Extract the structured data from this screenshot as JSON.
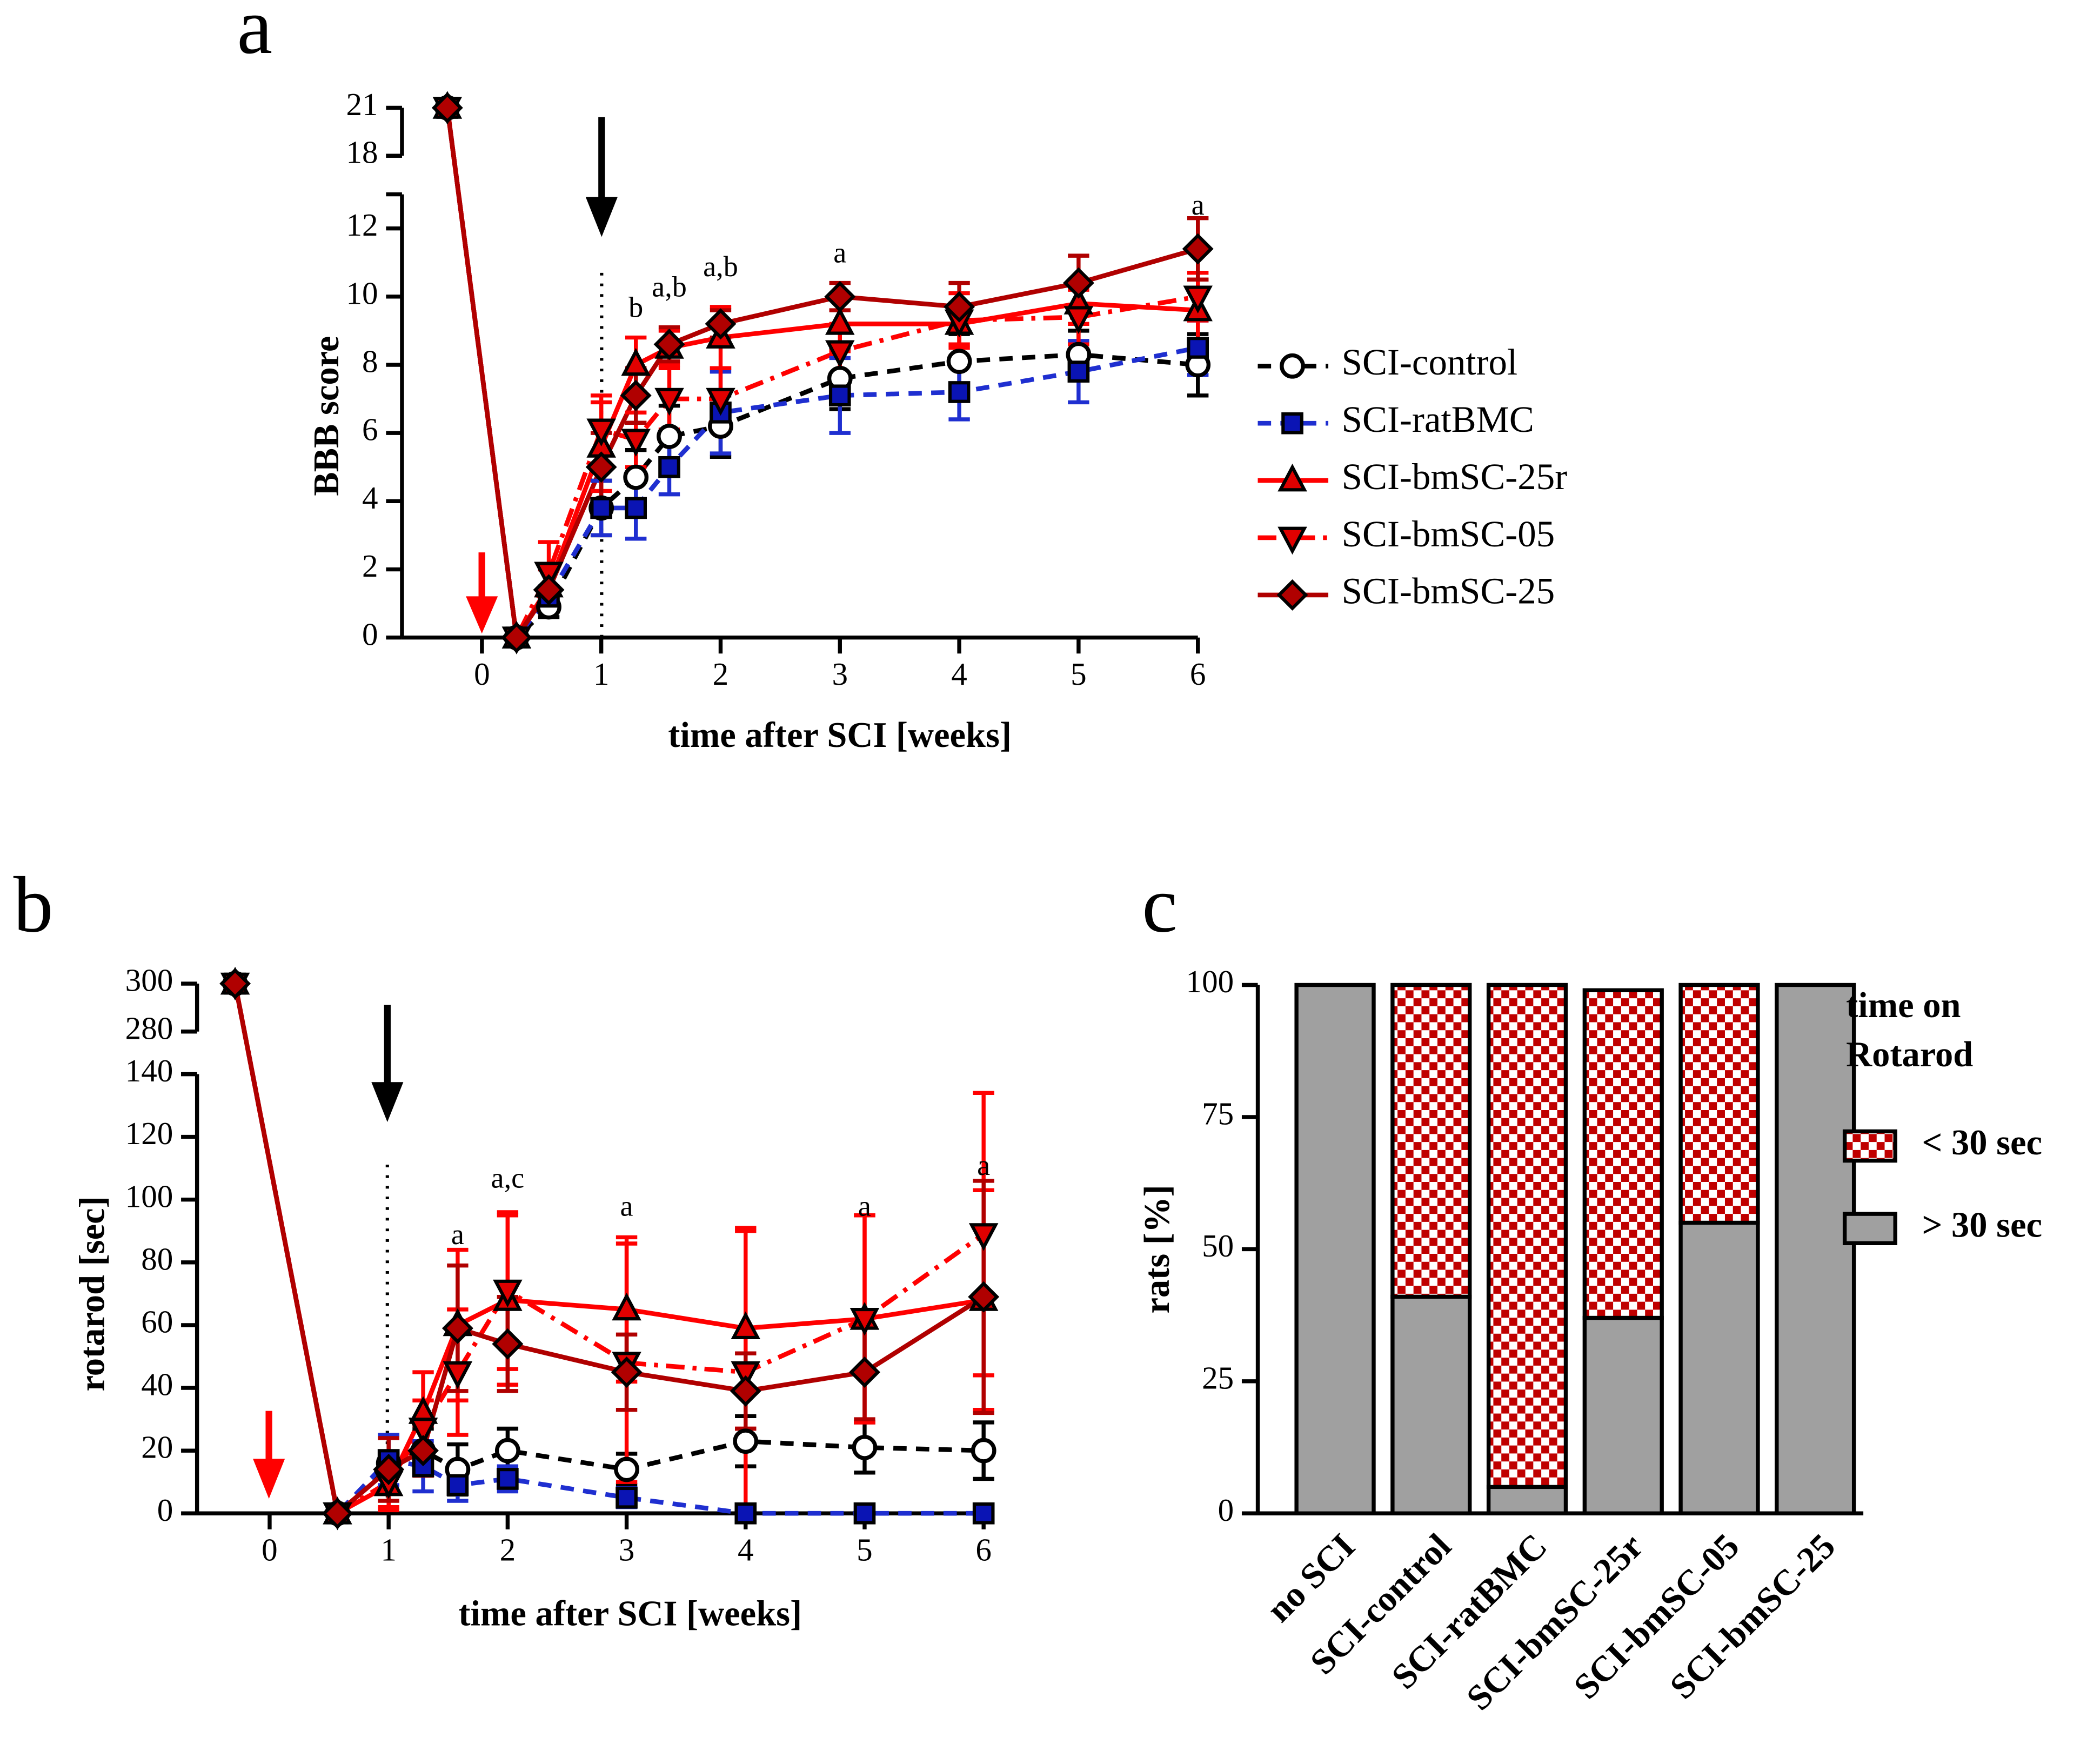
{
  "chart_data": [
    {
      "type": "line",
      "panel_label": "a",
      "ylabel": "BBB score",
      "xlabel": "time after SCI [weeks]",
      "x": [
        -0.29,
        0.29,
        0.56,
        1,
        1.29,
        1.57,
        2,
        3,
        4,
        5,
        6
      ],
      "xlim": [
        -0.67,
        6
      ],
      "xticks": [
        0,
        1,
        2,
        3,
        4,
        5,
        6
      ],
      "ylim": [
        0,
        13
      ],
      "yticks": [
        0,
        2,
        4,
        6,
        8,
        10,
        12
      ],
      "y2lim": [
        18,
        21
      ],
      "y2ticks": [
        18,
        21
      ],
      "series": [
        {
          "name": "SCI-control",
          "color": "#000000",
          "marker_color": "#ffffff",
          "marker": "circle",
          "dash": "dashed",
          "values": [
            21,
            0,
            0.9,
            3.8,
            4.7,
            5.9,
            6.2,
            7.6,
            8.1,
            8.3,
            8.0
          ],
          "errors": [
            null,
            null,
            0.3,
            0.8,
            0.8,
            0.9,
            0.9,
            0.9,
            0.8,
            0.7,
            0.9
          ]
        },
        {
          "name": "SCI-ratBMC",
          "color": "#1f2fd0",
          "marker_color": "#0a14b4",
          "marker": "square",
          "dash": "dashed",
          "values": [
            21,
            0,
            1.2,
            3.8,
            3.8,
            5.0,
            6.6,
            7.1,
            7.2,
            7.8,
            8.5
          ],
          "errors": [
            null,
            null,
            0.3,
            0.8,
            0.9,
            0.8,
            1.2,
            1.1,
            0.8,
            0.9,
            0.8
          ]
        },
        {
          "name": "SCI-bmSC-25r",
          "color": "#ff0000",
          "marker_color": "#e00000",
          "marker": "triangle-up",
          "dash": "solid",
          "values": [
            21,
            0,
            1.5,
            5.6,
            8.0,
            8.5,
            8.8,
            9.2,
            9.2,
            9.8,
            9.6
          ],
          "errors": [
            null,
            null,
            0.6,
            1.3,
            0.8,
            0.5,
            0.9,
            0.8,
            0.6,
            0.6,
            0.9
          ]
        },
        {
          "name": "SCI-bmSC-05",
          "color": "#ff0000",
          "marker_color": "#e00000",
          "marker": "triangle-down",
          "dash": "dashdot",
          "values": [
            21,
            0,
            1.9,
            6.1,
            5.8,
            7.0,
            7.0,
            8.4,
            9.3,
            9.4,
            10.0
          ],
          "errors": [
            null,
            null,
            0.9,
            1.0,
            0.8,
            0.9,
            0.9,
            0.8,
            0.8,
            0.8,
            0.7
          ]
        },
        {
          "name": "SCI-bmSC-25",
          "color": "#b00000",
          "marker_color": "#b00000",
          "marker": "diamond",
          "dash": "solid",
          "values": [
            21,
            0,
            1.4,
            5.0,
            7.1,
            8.6,
            9.2,
            10.0,
            9.7,
            10.4,
            11.4
          ],
          "errors": [
            null,
            null,
            0.6,
            1.0,
            0.8,
            0.5,
            0.4,
            0.4,
            0.7,
            0.8,
            0.9
          ]
        }
      ],
      "annotations": [
        {
          "text": "b",
          "x": 1.29,
          "y": 9.6
        },
        {
          "text": "a,b",
          "x": 1.57,
          "y": 10.2
        },
        {
          "text": "a,b",
          "x": 2,
          "y": 10.8
        },
        {
          "text": "a",
          "x": 3,
          "y": 11.2
        },
        {
          "text": "a",
          "x": 6,
          "y": 12.6
        }
      ]
    },
    {
      "type": "line",
      "panel_label": "b",
      "ylabel": "rotarod [sec]",
      "xlabel": "time after SCI [weeks]",
      "x": [
        -0.29,
        0.57,
        1,
        1.29,
        1.58,
        2,
        3,
        4,
        5,
        6
      ],
      "xlim": [
        -0.61,
        6
      ],
      "xticks": [
        0,
        1,
        2,
        3,
        4,
        5,
        6
      ],
      "ylim": [
        0,
        140
      ],
      "yticks": [
        0,
        20,
        40,
        60,
        80,
        100,
        120,
        140
      ],
      "y2lim": [
        280,
        300
      ],
      "y2ticks": [
        280,
        300
      ],
      "series": [
        {
          "color": "#000000",
          "marker_color": "#ffffff",
          "marker": "circle",
          "dash": "dashed",
          "values": [
            300,
            0,
            16,
            20,
            14,
            20,
            14,
            23,
            21,
            20
          ],
          "errors": [
            null,
            null,
            9,
            7,
            8,
            7,
            5,
            8,
            8,
            9
          ]
        },
        {
          "color": "#1f2fd0",
          "marker_color": "#0a14b4",
          "marker": "square",
          "dash": "dashed",
          "values": [
            300,
            0,
            17,
            15,
            9,
            11,
            5,
            0,
            0,
            0
          ],
          "errors": [
            null,
            null,
            8,
            8,
            5,
            4,
            3,
            null,
            null,
            null
          ]
        },
        {
          "color": "#ff0000",
          "marker_color": "#e00000",
          "marker": "triangle-up",
          "dash": "solid",
          "values": [
            300,
            0,
            9,
            32,
            60,
            68,
            65,
            59,
            62,
            68
          ],
          "errors": [
            null,
            null,
            8,
            13,
            24,
            27,
            23,
            32,
            33,
            35
          ]
        },
        {
          "color": "#ff0000",
          "marker_color": "#e00000",
          "marker": "triangle-down",
          "dash": "dashdot",
          "values": [
            300,
            0,
            10,
            27,
            45,
            71,
            48,
            45,
            62,
            89
          ],
          "errors": [
            null,
            null,
            8,
            9,
            20,
            25,
            38,
            45,
            33,
            45
          ]
        },
        {
          "color": "#b00000",
          "marker_color": "#b00000",
          "marker": "diamond",
          "dash": "solid",
          "values": [
            300,
            0,
            14,
            20,
            59,
            54,
            45,
            39,
            45,
            69
          ],
          "errors": [
            null,
            null,
            10,
            8,
            20,
            15,
            12,
            12,
            15,
            37
          ]
        }
      ],
      "annotations": [
        {
          "text": "a",
          "x": 1.58,
          "y": 88
        },
        {
          "text": "a,c",
          "x": 2,
          "y": 106
        },
        {
          "text": "a",
          "x": 3,
          "y": 97
        },
        {
          "text": "a",
          "x": 5,
          "y": 97
        },
        {
          "text": "a",
          "x": 6,
          "y": 110
        }
      ]
    },
    {
      "type": "stacked-bar",
      "panel_label": "c",
      "ylabel": "rats [%]",
      "categories": [
        "no SCI",
        "SCI-control",
        "SCI-ratBMC",
        "SCI-bmSC-25r",
        "SCI-bmSC-05",
        "SCI-bmSC-25"
      ],
      "ylim": [
        0,
        100
      ],
      "yticks": [
        0,
        25,
        50,
        75,
        100
      ],
      "legend_title": [
        "time on",
        "Rotarod"
      ],
      "series": [
        {
          "name": "> 30 sec",
          "color": "#a0a0a0",
          "values": [
            100,
            41,
            5,
            37,
            55,
            100
          ]
        },
        {
          "name": "< 30 sec",
          "color": "#c00000",
          "pattern": "checker",
          "values": [
            0,
            59,
            95,
            62,
            45,
            0
          ]
        }
      ]
    }
  ]
}
